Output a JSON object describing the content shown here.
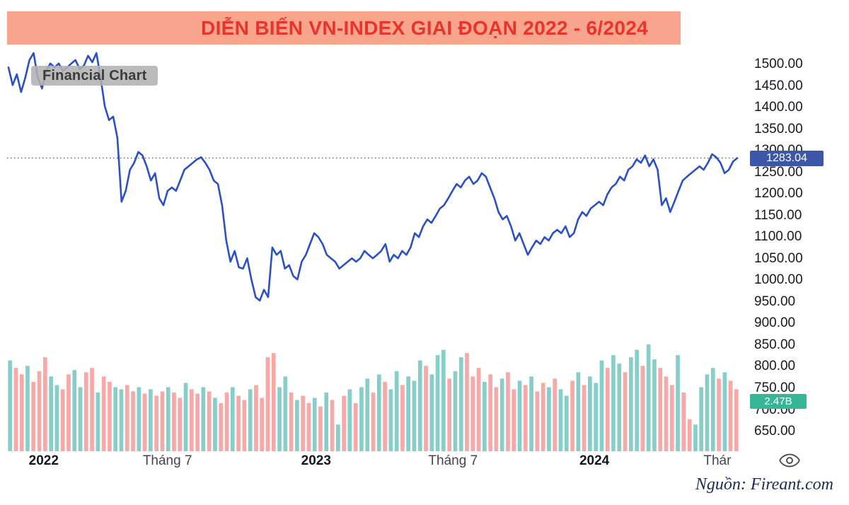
{
  "header": {
    "title": "DIỄN BIẾN VN-INDEX GIAI ĐOẠN 2022 - 6/2024",
    "bg": "#f9a48c",
    "text_color": "#e8342a"
  },
  "chart": {
    "watermark": "Financial Chart",
    "last_price_label": "1283.04",
    "volume_label": "2.47B"
  },
  "footer": {
    "source": "Nguồn: Fireant.com"
  },
  "chart_data": {
    "type": "line",
    "title": "DIỄN BIẾN VN-INDEX GIAI ĐOẠN 2022 - 6/2024",
    "legend": "none",
    "grid": false,
    "axis_side": "right",
    "ylim": [
      605,
      1535
    ],
    "last_price": 1283.04,
    "last_volume": "2.47B",
    "colors": {
      "line": "#2b50c4",
      "price_tag_bg": "#3c56a8",
      "volume_tag_bg": "#35b795",
      "volume_up": "rgba(38,166,154,0.55)",
      "volume_down": "rgba(239,83,80,0.50)"
    },
    "y_ticks": [
      "1500.00",
      "1450.00",
      "1400.00",
      "1350.00",
      "1300.00",
      "1250.00",
      "1200.00",
      "1150.00",
      "1100.00",
      "1050.00",
      "1000.00",
      "950.00",
      "900.00",
      "850.00",
      "800.00",
      "750.00",
      "700.00",
      "650.00"
    ],
    "x_ticks": [
      {
        "label": "2022",
        "pos": 0.05,
        "bold": true
      },
      {
        "label": "Tháng 7",
        "pos": 0.219,
        "bold": false
      },
      {
        "label": "2023",
        "pos": 0.422,
        "bold": true
      },
      {
        "label": "Tháng 7",
        "pos": 0.609,
        "bold": false
      },
      {
        "label": "2024",
        "pos": 0.802,
        "bold": true
      },
      {
        "label": "Thár",
        "pos": 0.97,
        "bold": false
      }
    ],
    "series": [
      {
        "name": "VN-Index",
        "values": [
          1493,
          1452,
          1477,
          1436,
          1469,
          1510,
          1526,
          1469,
          1444,
          1485,
          1502,
          1493,
          1502,
          1485,
          1493,
          1502,
          1510,
          1489,
          1497,
          1520,
          1505,
          1526,
          1469,
          1403,
          1371,
          1379,
          1330,
          1182,
          1207,
          1256,
          1272,
          1297,
          1289,
          1264,
          1231,
          1248,
          1190,
          1174,
          1207,
          1215,
          1207,
          1231,
          1256,
          1264,
          1272,
          1280,
          1285,
          1272,
          1256,
          1231,
          1223,
          1174,
          1092,
          1043,
          1068,
          1030,
          1027,
          1051,
          1002,
          961,
          953,
          978,
          961,
          1076,
          1059,
          1068,
          1027,
          1035,
          1010,
          1002,
          1043,
          1059,
          1084,
          1109,
          1100,
          1084,
          1059,
          1051,
          1043,
          1027,
          1035,
          1043,
          1051,
          1043,
          1051,
          1068,
          1059,
          1051,
          1059,
          1068,
          1084,
          1043,
          1059,
          1051,
          1068,
          1059,
          1076,
          1109,
          1100,
          1125,
          1141,
          1133,
          1149,
          1166,
          1174,
          1190,
          1207,
          1223,
          1215,
          1231,
          1240,
          1223,
          1231,
          1248,
          1240,
          1215,
          1190,
          1158,
          1141,
          1149,
          1125,
          1092,
          1109,
          1084,
          1059,
          1076,
          1092,
          1084,
          1100,
          1092,
          1109,
          1117,
          1109,
          1125,
          1100,
          1109,
          1141,
          1158,
          1149,
          1166,
          1174,
          1182,
          1174,
          1199,
          1215,
          1223,
          1240,
          1231,
          1256,
          1264,
          1280,
          1272,
          1289,
          1264,
          1280,
          1256,
          1174,
          1190,
          1158,
          1182,
          1207,
          1231,
          1240,
          1248,
          1256,
          1264,
          1256,
          1272,
          1292,
          1285,
          1272,
          1248,
          1256,
          1275,
          1283.04
        ]
      }
    ],
    "volume": {
      "unit": "relative",
      "values": [
        85,
        78,
        72,
        80,
        65,
        75,
        88,
        70,
        62,
        58,
        72,
        76,
        60,
        74,
        78,
        55,
        70,
        65,
        60,
        58,
        62,
        56,
        60,
        54,
        58,
        52,
        56,
        60,
        55,
        50,
        64,
        58,
        54,
        60,
        56,
        50,
        45,
        55,
        60,
        52,
        48,
        58,
        62,
        50,
        88,
        92,
        60,
        70,
        55,
        48,
        52,
        45,
        50,
        42,
        55,
        48,
        25,
        52,
        58,
        45,
        60,
        68,
        55,
        72,
        65,
        58,
        75,
        62,
        70,
        66,
        85,
        80,
        72,
        90,
        95,
        68,
        75,
        88,
        92,
        70,
        78,
        65,
        72,
        60,
        68,
        74,
        58,
        66,
        62,
        70,
        56,
        64,
        60,
        68,
        58,
        52,
        66,
        74,
        62,
        70,
        64,
        85,
        78,
        90,
        82,
        74,
        88,
        95,
        80,
        100,
        86,
        78,
        70,
        62,
        90,
        55,
        30,
        25,
        60,
        72,
        78,
        68,
        74,
        66,
        58
      ],
      "colors": "grrgrrrggrrggrrgrrggrrgrgrrgrrgrrgrgrrgrrgrrrrggrgrrgrgrgrgrggrgrggrgggrgggrggrrrgrrgrrgrgrrgrggrgrgggrggrggrggrrrgrrggggrgrrr"
    }
  }
}
